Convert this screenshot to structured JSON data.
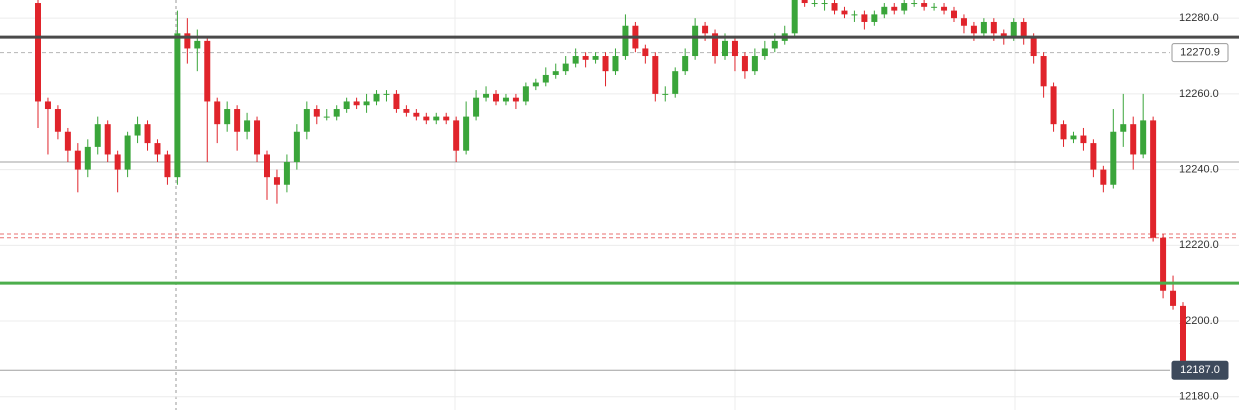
{
  "chart_data": {
    "type": "candlestick",
    "up_color": "#3aa53a",
    "down_color": "#e0242b",
    "ylim": [
      12176.5,
      12284.8
    ],
    "yticks": [
      {
        "value": 12180,
        "label": "12180.0"
      },
      {
        "value": 12200,
        "label": "12200.0"
      },
      {
        "value": 12220,
        "label": "12220.0"
      },
      {
        "value": 12240,
        "label": "12240.0"
      },
      {
        "value": 12260,
        "label": "12260.0"
      },
      {
        "value": 12280,
        "label": "12280.0"
      }
    ],
    "grid": true,
    "price_lines": [
      {
        "value": 12275,
        "color": "#4a4a4a",
        "style": "heavy"
      },
      {
        "value": 12270.9,
        "label": "12270.9",
        "color": "#b5b5b5",
        "style": "dashed",
        "label_style": "outline"
      },
      {
        "value": 12242,
        "color": "#a0a0a0",
        "style": "solid"
      },
      {
        "value": 12223,
        "color": "#e87070",
        "style": "dashed"
      },
      {
        "value": 12222,
        "color": "#e87070",
        "style": "dashed"
      },
      {
        "value": 12210,
        "color": "#4cae4c",
        "style": "heavy"
      },
      {
        "value": 12187,
        "label": "12187.0",
        "color": "#a0a0a0",
        "style": "solid",
        "label_style": "filled"
      }
    ],
    "open": [
      12284,
      12258,
      12256,
      12250,
      12245,
      12240,
      12246,
      12252,
      12244,
      12240,
      12249,
      12252,
      12247,
      12244,
      12238,
      12276,
      12272,
      12274,
      12258,
      12252,
      12256,
      12250,
      12253,
      12244,
      12238,
      12236,
      12242,
      12250,
      12256,
      12254,
      12254,
      12256,
      12258,
      12257,
      12258,
      12260,
      12260,
      12256,
      12255,
      12254,
      12253,
      12254,
      12253,
      12245,
      12254,
      12259,
      12260,
      12258,
      12259,
      12258,
      12262,
      12263,
      12265,
      12266,
      12268,
      12270,
      12269,
      12270,
      12266,
      12270,
      12278,
      12272,
      12270,
      12260,
      12260,
      12266,
      12270,
      12278,
      12276,
      12270,
      12274,
      12270,
      12266,
      12270,
      12272,
      12274,
      12276,
      12285,
      12284,
      12284,
      12284,
      12282,
      12281,
      12281,
      12279,
      12281,
      12283,
      12282,
      12284,
      12284,
      12283,
      12283,
      12282,
      12280,
      12278,
      12276,
      12279,
      12276,
      12275,
      12279,
      12275,
      12270,
      12262,
      12252,
      12248,
      12249,
      12247,
      12240,
      12236,
      12250,
      12252,
      12244,
      12253,
      12222,
      12208,
      12204
    ],
    "high": [
      12286,
      12259,
      12257,
      12251,
      12247,
      12248,
      12254,
      12253,
      12245,
      12250,
      12254,
      12253,
      12248,
      12245,
      12282,
      12280,
      12277,
      12275,
      12259,
      12258,
      12257,
      12255,
      12254,
      12245,
      12240,
      12244,
      12252,
      12258,
      12257,
      12256,
      12257,
      12259,
      12259,
      12260,
      12261,
      12261,
      12261,
      12257,
      12256,
      12255,
      12255,
      12255,
      12254,
      12258,
      12261,
      12262,
      12261,
      12260,
      12260,
      12263,
      12264,
      12267,
      12268,
      12270,
      12272,
      12271,
      12271,
      12271,
      12272,
      12281,
      12279,
      12273,
      12271,
      12262,
      12267,
      12272,
      12280,
      12279,
      12277,
      12276,
      12275,
      12271,
      12272,
      12274,
      12276,
      12278,
      12287,
      12286,
      12285,
      12285,
      12285,
      12283,
      12282,
      12282,
      12282,
      12284,
      12284,
      12285,
      12285,
      12285,
      12284,
      12284,
      12283,
      12281,
      12279,
      12280,
      12280,
      12277,
      12280,
      12280,
      12276,
      12271,
      12263,
      12253,
      12250,
      12251,
      12248,
      12241,
      12256,
      12260,
      12254,
      12260,
      12254,
      12223,
      12212,
      12205
    ],
    "low": [
      12251,
      12244,
      12248,
      12242,
      12234,
      12238,
      12244,
      12242,
      12234,
      12238,
      12247,
      12245,
      12242,
      12236,
      12236,
      12268,
      12266,
      12242,
      12247,
      12250,
      12245,
      12248,
      12242,
      12232,
      12231,
      12234,
      12240,
      12248,
      12252,
      12253,
      12253,
      12255,
      12256,
      12255,
      12257,
      12258,
      12255,
      12254,
      12253,
      12252,
      12252,
      12252,
      12242,
      12244,
      12253,
      12258,
      12257,
      12257,
      12256,
      12257,
      12261,
      12262,
      12264,
      12265,
      12267,
      12267,
      12268,
      12262,
      12265,
      12269,
      12271,
      12268,
      12258,
      12258,
      12259,
      12265,
      12269,
      12274,
      12268,
      12269,
      12266,
      12264,
      12265,
      12269,
      12271,
      12273,
      12275,
      12283,
      12283,
      12282,
      12281,
      12280,
      12279,
      12277,
      12278,
      12280,
      12281,
      12281,
      12283,
      12282,
      12282,
      12281,
      12279,
      12276,
      12274,
      12275,
      12274,
      12273,
      12274,
      12273,
      12268,
      12259,
      12250,
      12246,
      12247,
      12245,
      12238,
      12234,
      12235,
      12246,
      12240,
      12243,
      12221,
      12206,
      12203,
      12187
    ],
    "close": [
      12258,
      12256,
      12250,
      12245,
      12240,
      12246,
      12252,
      12244,
      12240,
      12249,
      12252,
      12247,
      12244,
      12238,
      12276,
      12272,
      12274,
      12258,
      12252,
      12256,
      12250,
      12253,
      12244,
      12238,
      12236,
      12242,
      12250,
      12256,
      12254,
      12254,
      12256,
      12258,
      12257,
      12258,
      12260,
      12260,
      12256,
      12255,
      12254,
      12253,
      12254,
      12253,
      12245,
      12254,
      12259,
      12260,
      12258,
      12259,
      12258,
      12262,
      12263,
      12265,
      12266,
      12268,
      12270,
      12269,
      12270,
      12266,
      12270,
      12278,
      12272,
      12270,
      12260,
      12260,
      12266,
      12270,
      12278,
      12276,
      12270,
      12274,
      12270,
      12266,
      12270,
      12272,
      12274,
      12276,
      12285,
      12284,
      12284,
      12284,
      12282,
      12281,
      12281,
      12279,
      12281,
      12283,
      12282,
      12284,
      12284,
      12283,
      12283,
      12282,
      12280,
      12278,
      12276,
      12279,
      12276,
      12275,
      12279,
      12275,
      12270,
      12262,
      12252,
      12248,
      12249,
      12247,
      12240,
      12236,
      12250,
      12252,
      12244,
      12253,
      12222,
      12208,
      12204,
      12187
    ]
  }
}
